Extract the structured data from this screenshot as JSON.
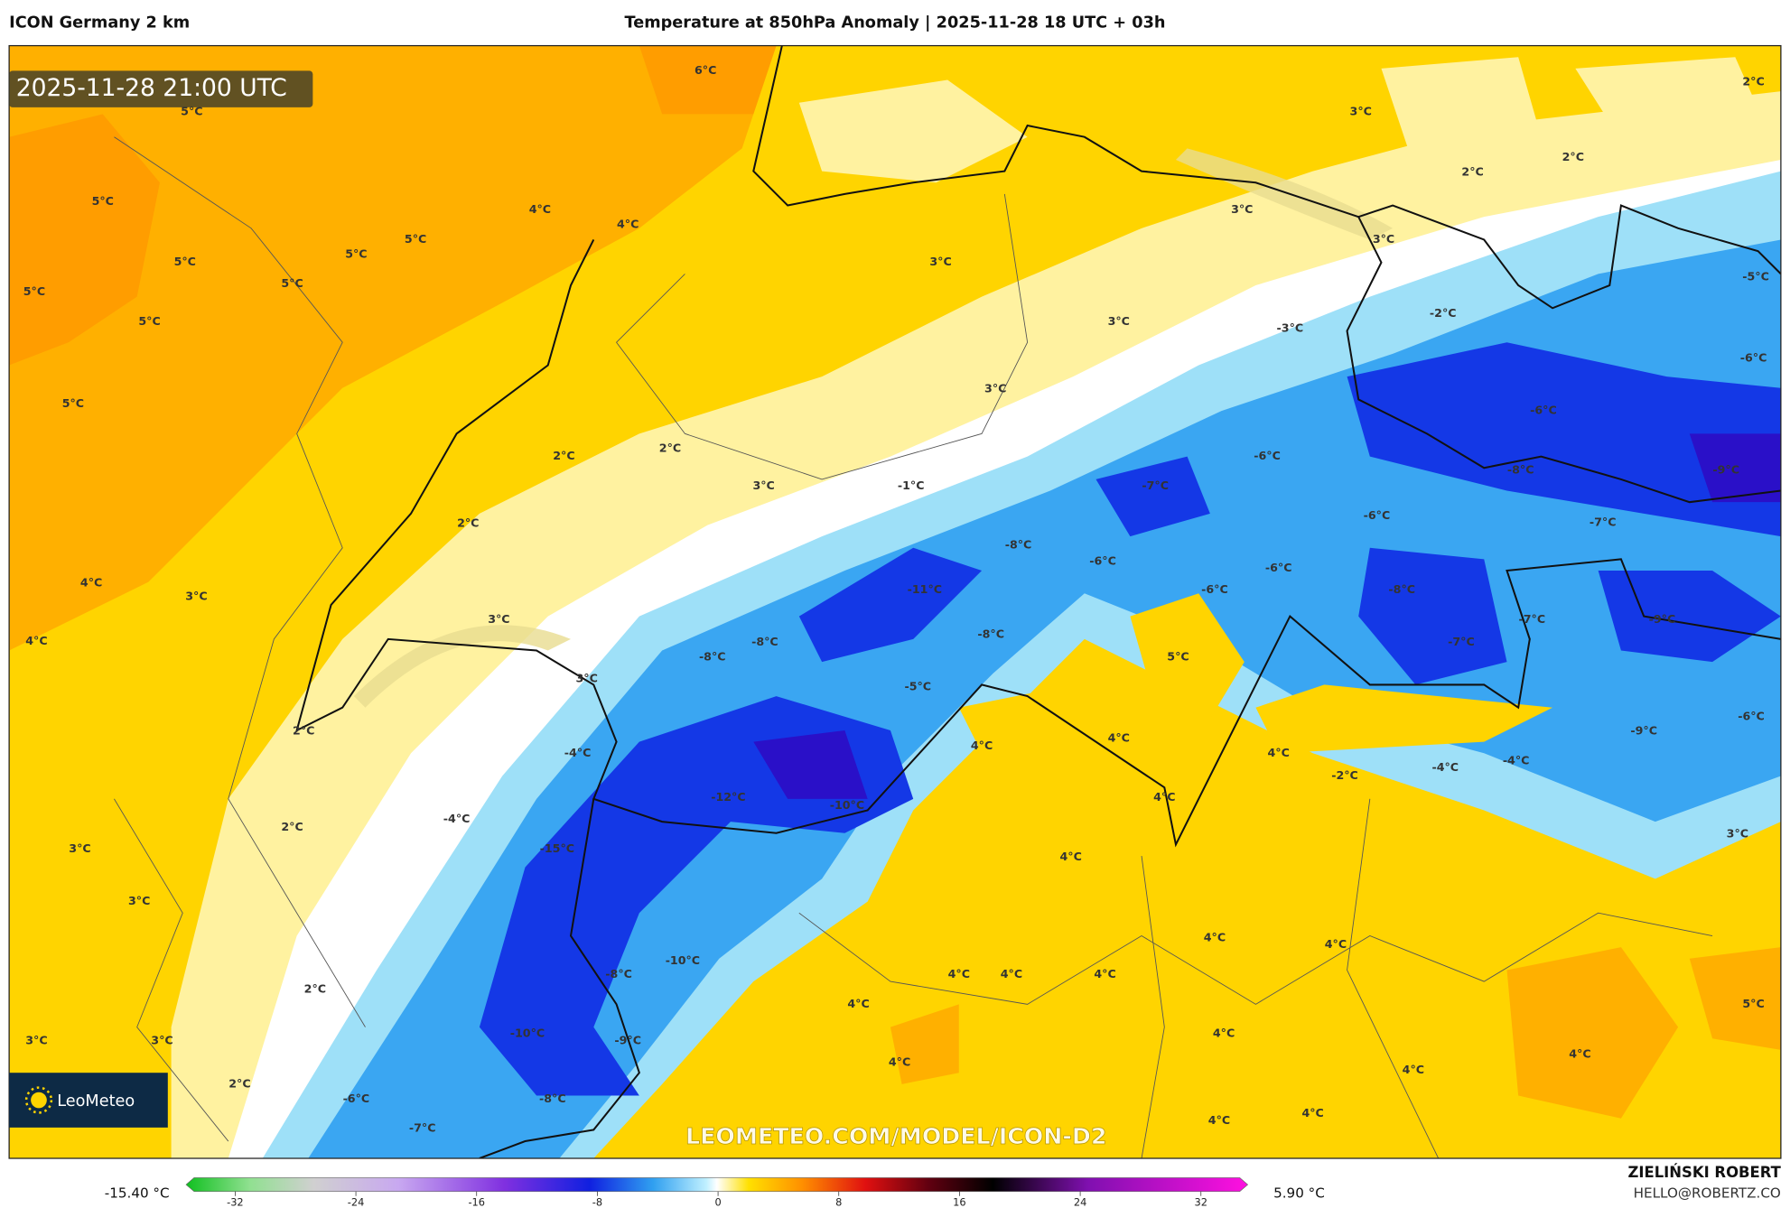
{
  "header": {
    "left": "ICON Germany 2 km",
    "title": "Temperature at 850hPa Anomaly | 2025-11-28 18 UTC + 03h"
  },
  "timestamp": "2025-11-28 21:00 UTC",
  "watermark": "LEOMETEO.COM/MODEL/ICON-D2",
  "logo": "LeoMeteo",
  "labels": [
    "6°C",
    "2°C",
    "5°C",
    "3°C",
    "2°C",
    "2°C",
    "5°C",
    "4°C",
    "3°C",
    "4°C",
    "3°C",
    "5°C",
    "5°C",
    "5°C",
    "3°C",
    "5°C",
    "-5°C",
    "5°C",
    "-2°C",
    "5°C",
    "3°C",
    "-3°C",
    "-6°C",
    "3°C",
    "5°C",
    "-6°C",
    "2°C",
    "2°C",
    "-6°C",
    "-8°C",
    "-9°C",
    "3°C",
    "-1°C",
    "-7°C",
    "2°C",
    "-6°C",
    "-7°C",
    "-8°C",
    "-6°C",
    "-6°C",
    "4°C",
    "-11°C",
    "-6°C",
    "-8°C",
    "3°C",
    "3°C",
    "-8°C",
    "-7°C",
    "-9°C",
    "4°C",
    "-8°C",
    "-8°C",
    "-7°C",
    "5°C",
    "3°C",
    "-5°C",
    "-6°C",
    "2°C",
    "-9°C",
    "4°C",
    "4°C",
    "-4°C",
    "4°C",
    "-4°C",
    "-4°C",
    "-2°C",
    "-12°C",
    "-10°C",
    "4°C",
    "-4°C",
    "2°C",
    "3°C",
    "3°C",
    "-15°C",
    "4°C",
    "3°C",
    "4°C",
    "4°C",
    "-10°C",
    "-8°C",
    "4°C",
    "4°C",
    "4°C",
    "2°C",
    "4°C",
    "5°C",
    "3°C",
    "3°C",
    "-10°C",
    "-9°C",
    "4°C",
    "4°C",
    "4°C",
    "4°C",
    "2°C",
    "-6°C",
    "-8°C",
    "4°C",
    "4°C",
    "-7°C"
  ],
  "colorbar": {
    "min_label": "-15.40 °C",
    "max_label": "5.90 °C",
    "ticks": [
      -32,
      -24,
      -16,
      -8,
      0,
      8,
      16,
      24,
      32
    ],
    "range": [
      -32,
      32
    ]
  },
  "credits": {
    "author": "ZIELIŃSKI ROBERT",
    "email": "HELLO@ROBERTZ.CO"
  }
}
